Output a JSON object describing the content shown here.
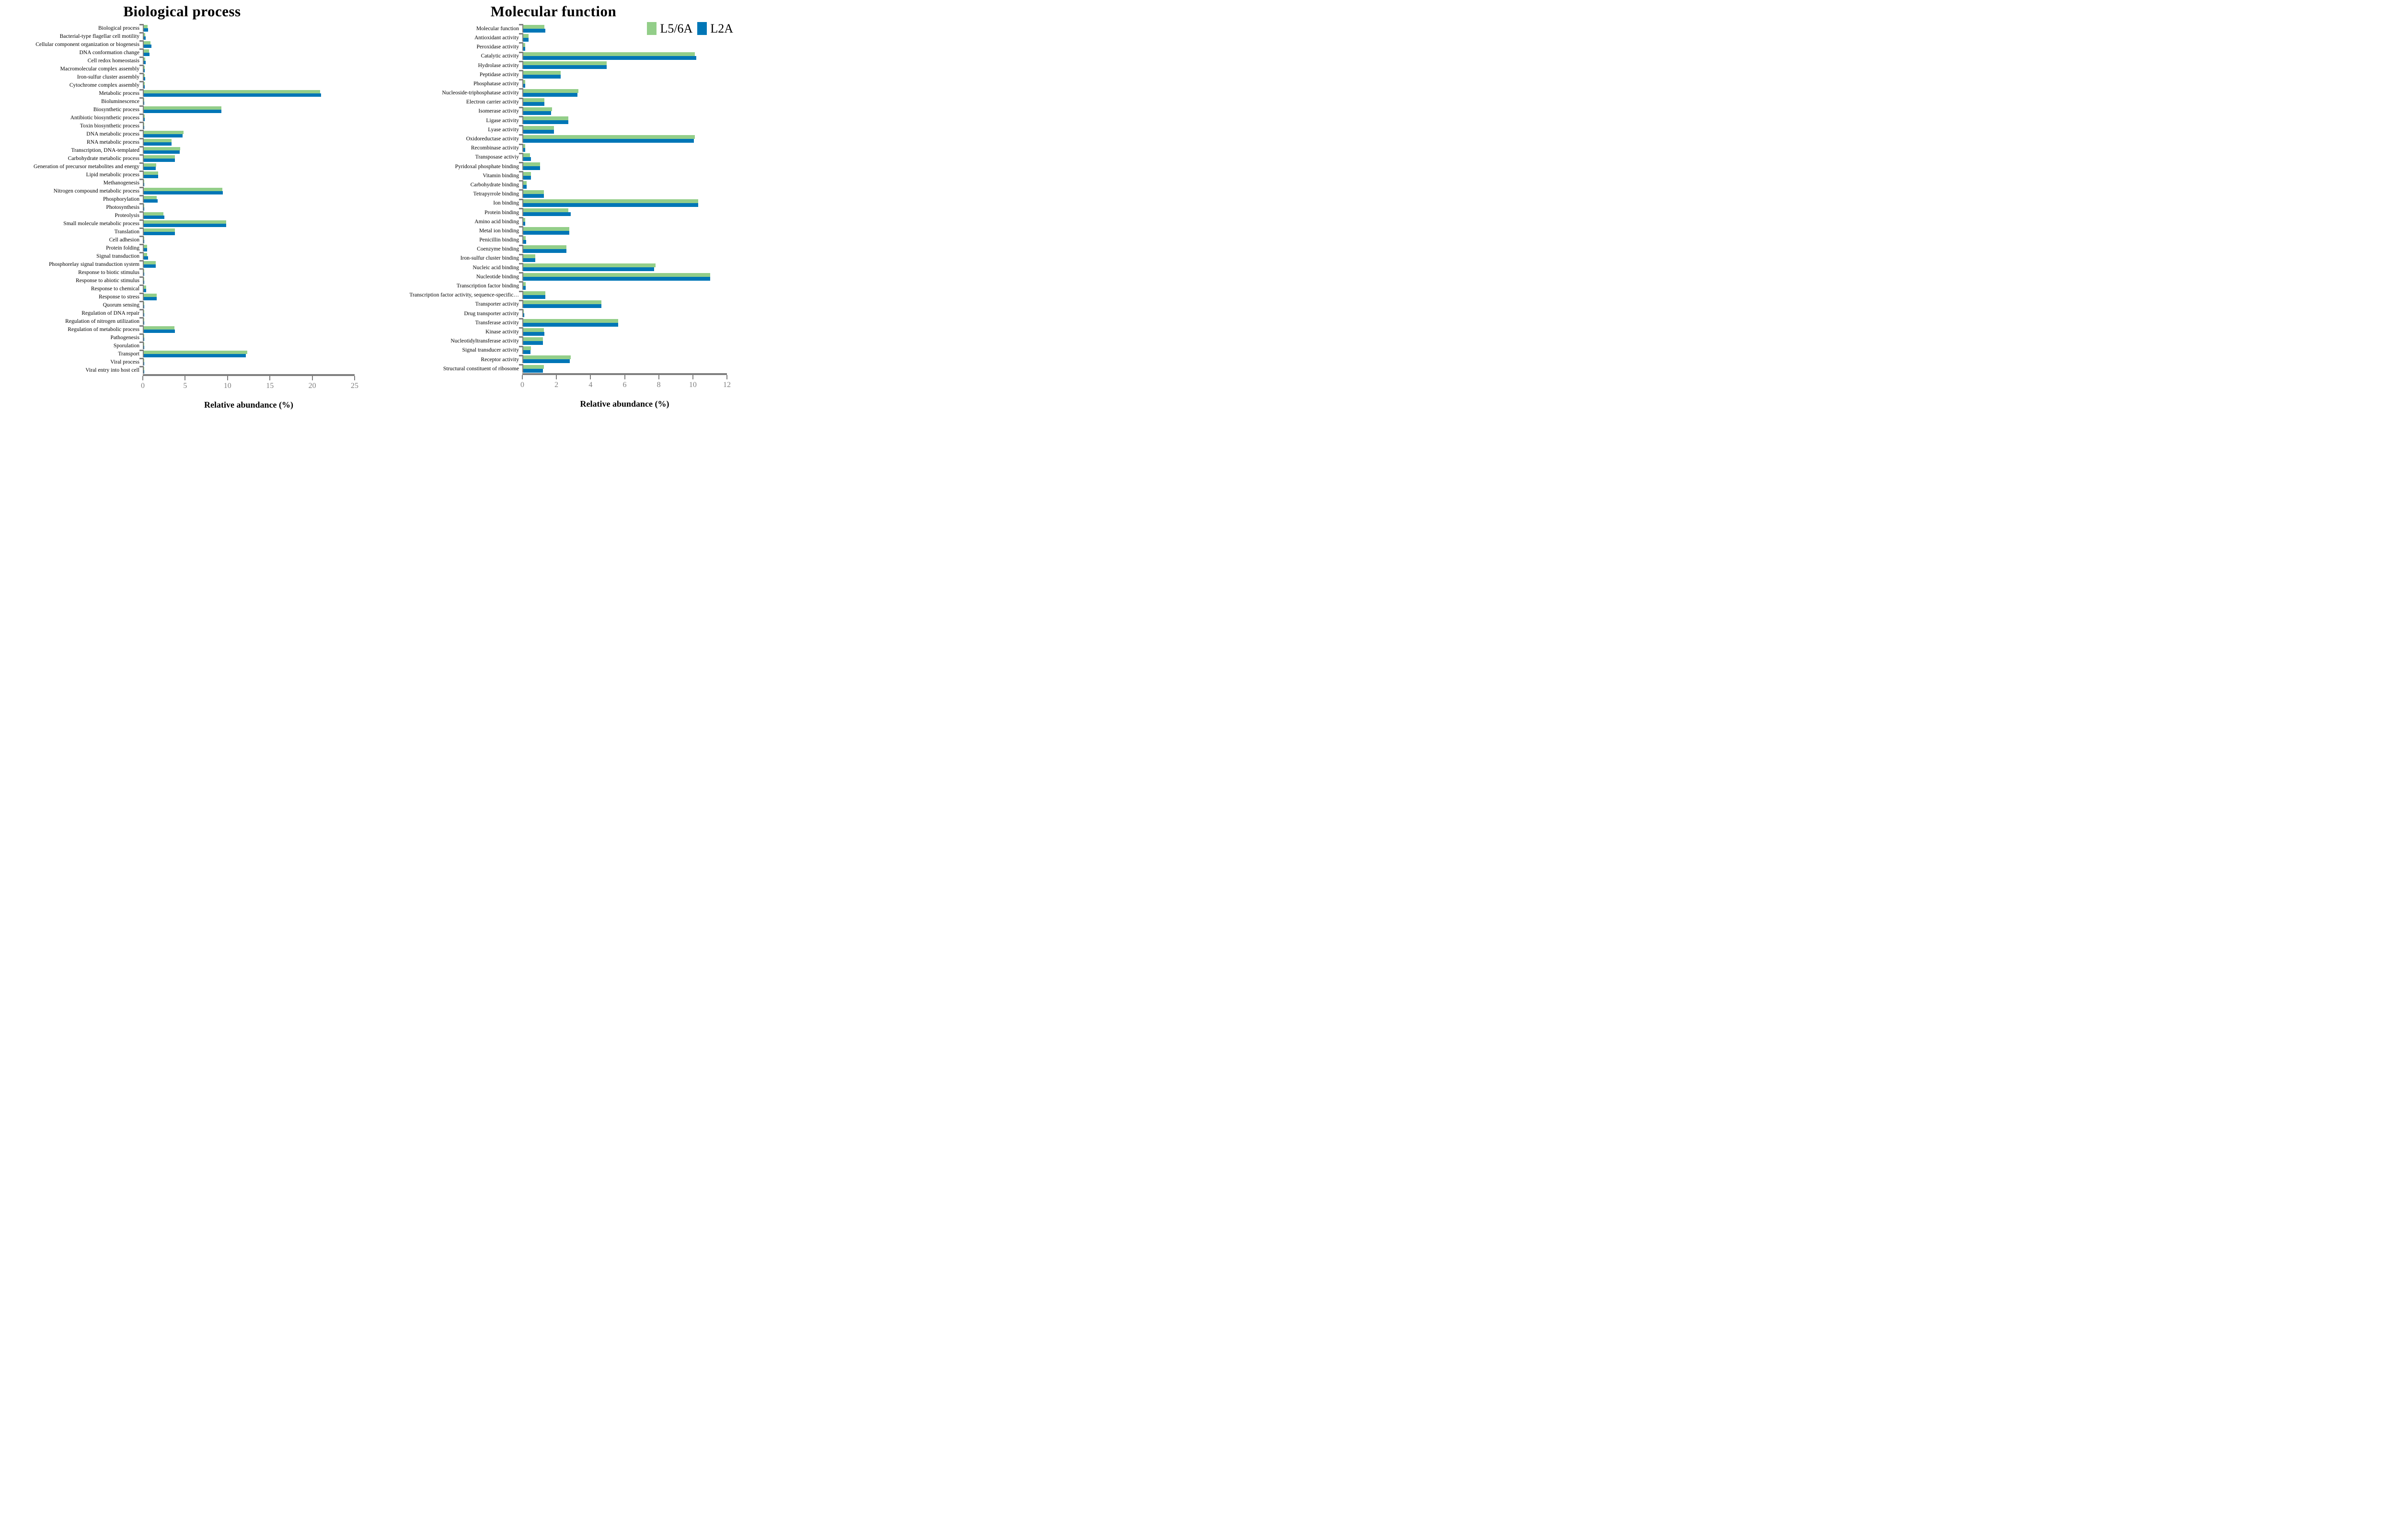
{
  "colors": {
    "series_green": "#93CE89",
    "series_blue": "#0076B6",
    "axis_gray": "#7F7F7F",
    "tick_label_gray": "#808080"
  },
  "chart_data": [
    {
      "type": "bar",
      "orientation": "horizontal",
      "title": "Biological process",
      "xlabel": "Relative abundance (%)",
      "xlim": [
        0,
        25
      ],
      "xticks": [
        0,
        5,
        10,
        15,
        20,
        25
      ],
      "grid": false,
      "legend_position": "none",
      "categories": [
        "Biological process",
        "Bacterial-type flagellar cell motility",
        "Cellular component organization or biogenesis",
        "DNA conformation change",
        "Cell redox homeostasis",
        "Macromolecular complex assembly",
        "Iron-sulfur cluster assembly",
        "Cytochrome complex assembly",
        "Metabolic process",
        "Bioluminescence",
        "Biosynthetic process",
        "Antibiotic biosynthetic process",
        "Toxin biosynthetic process",
        "DNA metabolic process",
        "RNA metabolic process",
        "Transcription, DNA-templated",
        "Carbohydrate metabolic process",
        "Generation of precursor metabolites and energy",
        "Lipid metabolic process",
        "Methanogenesis",
        "Nitrogen compound metabolic process",
        "Phosphorylation",
        "Photosynthesis",
        "Proteolysis",
        "Small molecule metabolic process",
        "Translation",
        "Cell adhesion",
        "Protein folding",
        "Signal transduction",
        "Phosphorelay signal transduction system",
        "Response to biotic stimulus",
        "Response to abiotic stimulus",
        "Response to chemical",
        "Response to stress",
        "Quorum sensing",
        "Regulation of DNA repair",
        "Regulation of nitrogen utilization",
        "Regulation of metabolic process",
        "Pathogenesis",
        "Sporulation",
        "Transport",
        "Viral process",
        "Viral entry into host cell"
      ],
      "series": [
        {
          "name": "L5/6A",
          "color": "#93CE89",
          "values": [
            0.45,
            0.15,
            0.8,
            0.65,
            0.15,
            0.1,
            0.1,
            0.1,
            20.9,
            0.05,
            9.2,
            0.1,
            0.05,
            4.7,
            3.3,
            4.3,
            3.7,
            1.45,
            1.7,
            0.07,
            9.3,
            1.55,
            0.05,
            2.35,
            9.8,
            3.7,
            0.05,
            0.4,
            0.4,
            1.4,
            0.05,
            0.07,
            0.3,
            1.55,
            0.05,
            0.05,
            0.06,
            3.65,
            0.05,
            0.05,
            12.3,
            0.05,
            0.05
          ]
        },
        {
          "name": "L2A",
          "color": "#0076B6",
          "values": [
            0.5,
            0.2,
            0.9,
            0.7,
            0.2,
            0.1,
            0.15,
            0.1,
            21.0,
            0.07,
            9.2,
            0.1,
            0.08,
            4.6,
            3.3,
            4.25,
            3.7,
            1.4,
            1.7,
            0.07,
            9.4,
            1.65,
            0.07,
            2.45,
            9.8,
            3.7,
            0.06,
            0.4,
            0.5,
            1.4,
            0.06,
            0.08,
            0.3,
            1.55,
            0.05,
            0.05,
            0.07,
            3.7,
            0.05,
            0.06,
            12.1,
            0.06,
            0.05
          ]
        }
      ]
    },
    {
      "type": "bar",
      "orientation": "horizontal",
      "title": "Molecular function",
      "xlabel": "Relative abundance (%)",
      "xlim": [
        0,
        12
      ],
      "xticks": [
        0,
        2,
        4,
        6,
        8,
        10,
        12
      ],
      "grid": false,
      "legend_position": "top-right",
      "legend": [
        "L5/6A",
        "L2A"
      ],
      "categories": [
        "Molecular function",
        "Antioxidant activity",
        "Peroxidase activity",
        "Catalytic activity",
        "Hydrolase activity",
        "Peptidase activity",
        "Phosphatase activity",
        "Nucleoside-triphosphatase activity",
        "Electron carrier activity",
        "Isomerase activity",
        "Ligase activity",
        "Lyase activity",
        "Oxidoreductase activity",
        "Recombinase activity",
        "Transposase activiy",
        "Pyridoxal phosphate binding",
        "Vitamin binding",
        "Carbohydrate binding",
        "Tetrapyrrole binding",
        "Ion binding",
        "Protein binding",
        "Amino acid binding",
        "Metal ion binding",
        "Penicillin binding",
        "Coenzyme binding",
        "Iron-sulfur cluster binding",
        "Nucleic acid binding",
        "Nucleotide binding",
        "Transcription factor binding",
        "Transcription factor activity, sequence-specific…",
        "Transporter activity",
        "Drug transporter activity",
        "Transferase activity",
        "Kinase activity",
        "Nucleotidyltransferase activity",
        "Signal transducer activity",
        "Receptor activity",
        "Structural constituent of ribosome"
      ],
      "series": [
        {
          "name": "L5/6A",
          "color": "#93CE89",
          "values": [
            1.25,
            0.3,
            0.1,
            10.1,
            4.9,
            2.2,
            0.12,
            3.25,
            1.25,
            1.7,
            2.65,
            1.8,
            10.1,
            0.1,
            0.4,
            1.0,
            0.45,
            0.2,
            1.2,
            10.3,
            2.65,
            0.1,
            2.7,
            0.15,
            2.55,
            0.7,
            7.8,
            11.0,
            0.15,
            1.3,
            4.6,
            0.03,
            5.6,
            1.2,
            1.15,
            0.45,
            2.8,
            1.2
          ]
        },
        {
          "name": "L2A",
          "color": "#0076B6",
          "values": [
            1.3,
            0.3,
            0.12,
            10.2,
            4.9,
            2.2,
            0.12,
            3.2,
            1.25,
            1.65,
            2.65,
            1.8,
            10.05,
            0.1,
            0.45,
            1.0,
            0.45,
            0.2,
            1.2,
            10.3,
            2.8,
            0.12,
            2.7,
            0.17,
            2.55,
            0.7,
            7.7,
            11.0,
            0.15,
            1.3,
            4.6,
            0.05,
            5.6,
            1.25,
            1.15,
            0.43,
            2.75,
            1.15
          ]
        }
      ]
    }
  ]
}
